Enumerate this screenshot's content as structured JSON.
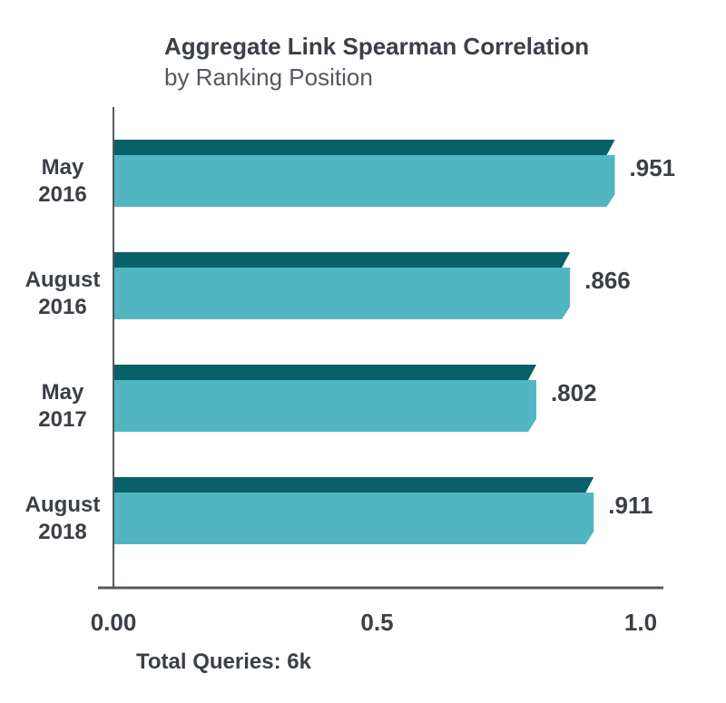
{
  "chart_data": {
    "type": "bar",
    "orientation": "horizontal",
    "title": "Aggregate Link Spearman Correlation",
    "subtitle": "by Ranking Position",
    "categories": [
      [
        "May",
        "2016"
      ],
      [
        "August",
        "2016"
      ],
      [
        "May",
        "2017"
      ],
      [
        "August",
        "2018"
      ]
    ],
    "values": [
      0.951,
      0.866,
      0.802,
      0.911
    ],
    "value_labels": [
      ".951",
      ".866",
      ".802",
      ".911"
    ],
    "xlim": [
      0,
      1.0
    ],
    "xticks": [
      0,
      0.5,
      1.0
    ],
    "xtick_labels": [
      "0.00",
      "0.5",
      "1.0"
    ],
    "grid": false,
    "legend": "none",
    "footnote": "Total Queries: 6k",
    "colors": {
      "bar_face": "#52b6c2",
      "bar_top": "#08606a",
      "axis": "#54585f",
      "text": "#3b3f46"
    }
  }
}
